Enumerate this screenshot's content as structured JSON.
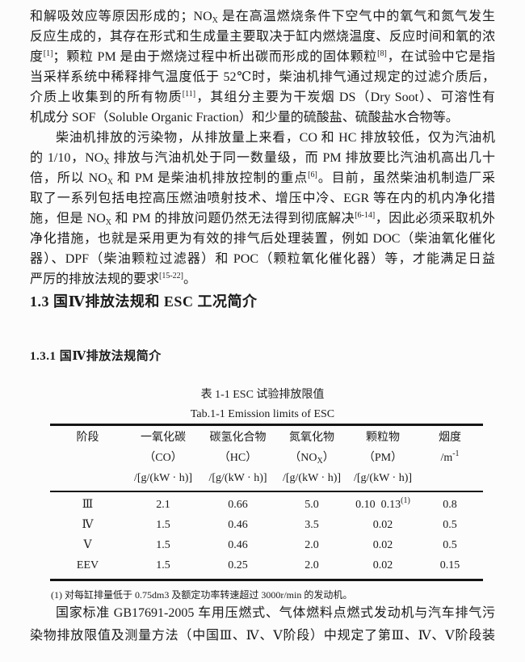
{
  "document": {
    "kind": "thesis-page",
    "text_color": "#1b1b1b",
    "background": "#fcfcfc"
  },
  "paragraphs": [
    {
      "name": "paragraph-1",
      "indent_first": false,
      "justify_last": false,
      "lines": [
        "和解吸效应等原因形成的；NO~X~ 是在高温燃烧条件下空气中的氧气和氮气发生",
        "反应生成的，其存在形式和生成量主要取决于缸内燃烧温度、反应时间和氧的浓",
        "度^[1]^；颗粒 PM 是由于燃烧过程中析出碳而形成的固体颗粒^[8]^，在试验中它是指",
        "当采样系统中稀释排气温度低于 52℃时，柴油机排气通过规定的过滤介质后，",
        "介质上收集到的所有物质^[11]^，其组分主要为干炭烟 DS（Dry Soot）、可溶性有",
        "机成分 SOF（Soluble Organic Fraction）和少量的硫酸盐、硫酸盐水合物等。"
      ]
    },
    {
      "name": "paragraph-2",
      "indent_first": true,
      "justify_last": false,
      "lines": [
        "柴油机排放的污染物，从排放量上来看，CO 和 HC 排放较低，仅为汽油机",
        "的 1/10，NO~X~ 排放与汽油机处于同一数量级，而 PM 排放要比汽油机高出几十",
        "倍，所以 NO~X~ 和 PM 是柴油机排放控制的重点^[6]^。目前，虽然柴油机制造厂采",
        "取了一系列包括电控高压燃油喷射技术、增压中冷、EGR 等在内的机内净化措",
        "施，但是 NO~X~ 和 PM 的排放问题仍然无法得到彻底解决^[6-14]^，因此必须采取机外",
        "净化措施，也就是采用更为有效的排气后处理装置，例如 DOC（柴油氧化催化",
        "器）、DPF（柴油颗粒过滤器）和 POC（颗粒氧化催化器）等，才能满足日益",
        "严厉的排放法规的要求^[15-22]^。"
      ]
    },
    {
      "name": "paragraph-3",
      "indent_first": true,
      "justify_last": true,
      "lines": [
        "国家标准 GB17691-2005 车用压燃式、气体燃料点燃式发动机与汽车排气污",
        "染物排放限值及测量方法（中国Ⅲ、Ⅳ、Ⅴ阶段）中规定了第Ⅲ、Ⅳ、Ⅴ阶段装"
      ]
    }
  ],
  "headings": {
    "section": "1.3 国Ⅳ排放法规和 ESC 工况简介",
    "subsection": "1.3.1 国Ⅳ排放法规简介"
  },
  "table": {
    "caption_zh": "表 1-1 ESC 试验排放限值",
    "caption_en": "Tab.1-1 Emission limits of ESC",
    "header": [
      {
        "l1": "阶段",
        "l2": "",
        "l3": ""
      },
      {
        "l1": "一氧化碳",
        "l2": "（CO）",
        "l3": "/[g/(kW · h)]"
      },
      {
        "l1": "碳氢化合物",
        "l2": "（HC）",
        "l3": "/[g/(kW · h)]"
      },
      {
        "l1": "氮氧化物",
        "l2": "（NO~X~）",
        "l3": "/[g/(kW · h)]"
      },
      {
        "l1": "颗粒物",
        "l2": "（PM）",
        "l3": "/[g/(kW · h)]"
      },
      {
        "l1": "烟度",
        "l2": "/m^-1^",
        "l3": ""
      }
    ],
    "rows": [
      [
        "Ⅲ",
        "2.1",
        "0.66",
        "5.0",
        "0.10  0.13^(1)^",
        "0.8"
      ],
      [
        "Ⅳ",
        "1.5",
        "0.46",
        "3.5",
        "0.02",
        "0.5"
      ],
      [
        "Ⅴ",
        "1.5",
        "0.46",
        "2.0",
        "0.02",
        "0.5"
      ],
      [
        "EEV",
        "1.5",
        "0.25",
        "2.0",
        "0.02",
        "0.15"
      ]
    ],
    "footnote": "(1) 对每缸排量低于 0.75dm3 及额定功率转速超过 3000r/min 的发动机。"
  }
}
